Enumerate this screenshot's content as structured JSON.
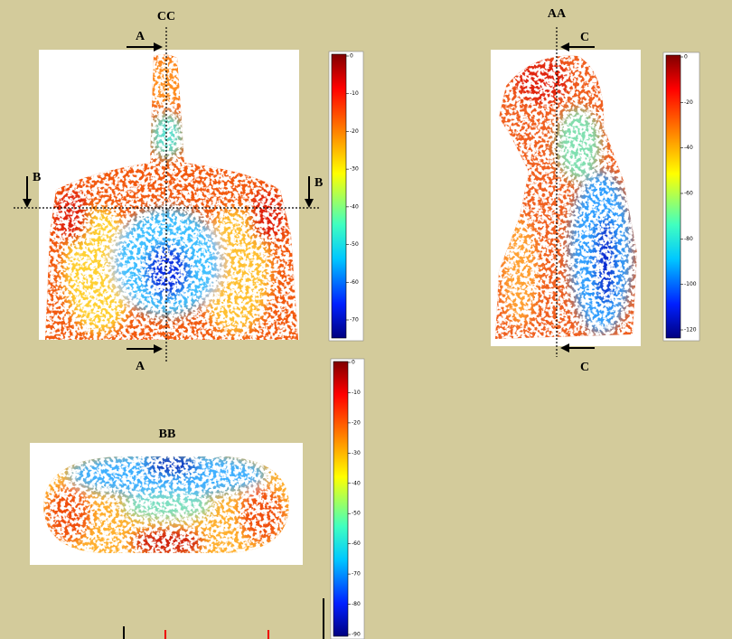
{
  "cc": {
    "title": "CC",
    "marker_top": "A",
    "marker_bottom": "A",
    "marker_left": "B",
    "marker_right": "B",
    "colorbar_ticks": [
      0,
      -10,
      -20,
      -30,
      -40,
      -50,
      -60,
      -70
    ]
  },
  "aa": {
    "title": "AA",
    "marker_top": "C",
    "marker_bottom": "C",
    "colorbar_ticks": [
      0,
      -20,
      -40,
      -60,
      -80,
      -100,
      -120
    ]
  },
  "bb": {
    "title": "BB",
    "colorbar_ticks": [
      0,
      -10,
      -20,
      -30,
      -40,
      -50,
      -60,
      -70,
      -80,
      -90
    ]
  }
}
